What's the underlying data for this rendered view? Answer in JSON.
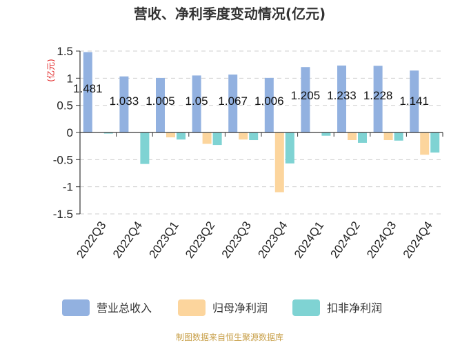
{
  "chart_data": {
    "type": "bar",
    "title": "营收、净利季度变动情况(亿元)",
    "unit_label": "(亿元)",
    "categories": [
      "2022Q3",
      "2022Q4",
      "2023Q1",
      "2023Q2",
      "2023Q3",
      "2023Q4",
      "2024Q1",
      "2024Q2",
      "2024Q3",
      "2024Q4"
    ],
    "series": [
      {
        "name": "营业总收入",
        "color": "#92b1e0",
        "values": [
          1.481,
          1.033,
          1.005,
          1.05,
          1.067,
          1.006,
          1.205,
          1.233,
          1.228,
          1.141
        ],
        "labels": [
          "1.481",
          "1.033",
          "1.005",
          "1.05",
          "1.067",
          "1.006",
          "1.205",
          "1.233",
          "1.228",
          "1.141"
        ]
      },
      {
        "name": "归母净利润",
        "color": "#fcd59d",
        "values": [
          0.0,
          0.0,
          -0.09,
          -0.21,
          -0.13,
          -1.1,
          0.0,
          -0.14,
          -0.14,
          -0.41
        ]
      },
      {
        "name": "扣非净利润",
        "color": "#7fd3d3",
        "values": [
          -0.02,
          -0.58,
          -0.13,
          -0.23,
          -0.14,
          -0.57,
          -0.06,
          -0.19,
          -0.15,
          -0.37
        ]
      }
    ],
    "y_ticks": [
      "1.5",
      "1",
      "0.5",
      "0",
      "-0.5",
      "-1",
      "-1.5"
    ],
    "ylim": [
      -1.5,
      1.5
    ],
    "grid": true,
    "legend_position": "bottom"
  },
  "source": "制图数据来自恒生聚源数据库"
}
